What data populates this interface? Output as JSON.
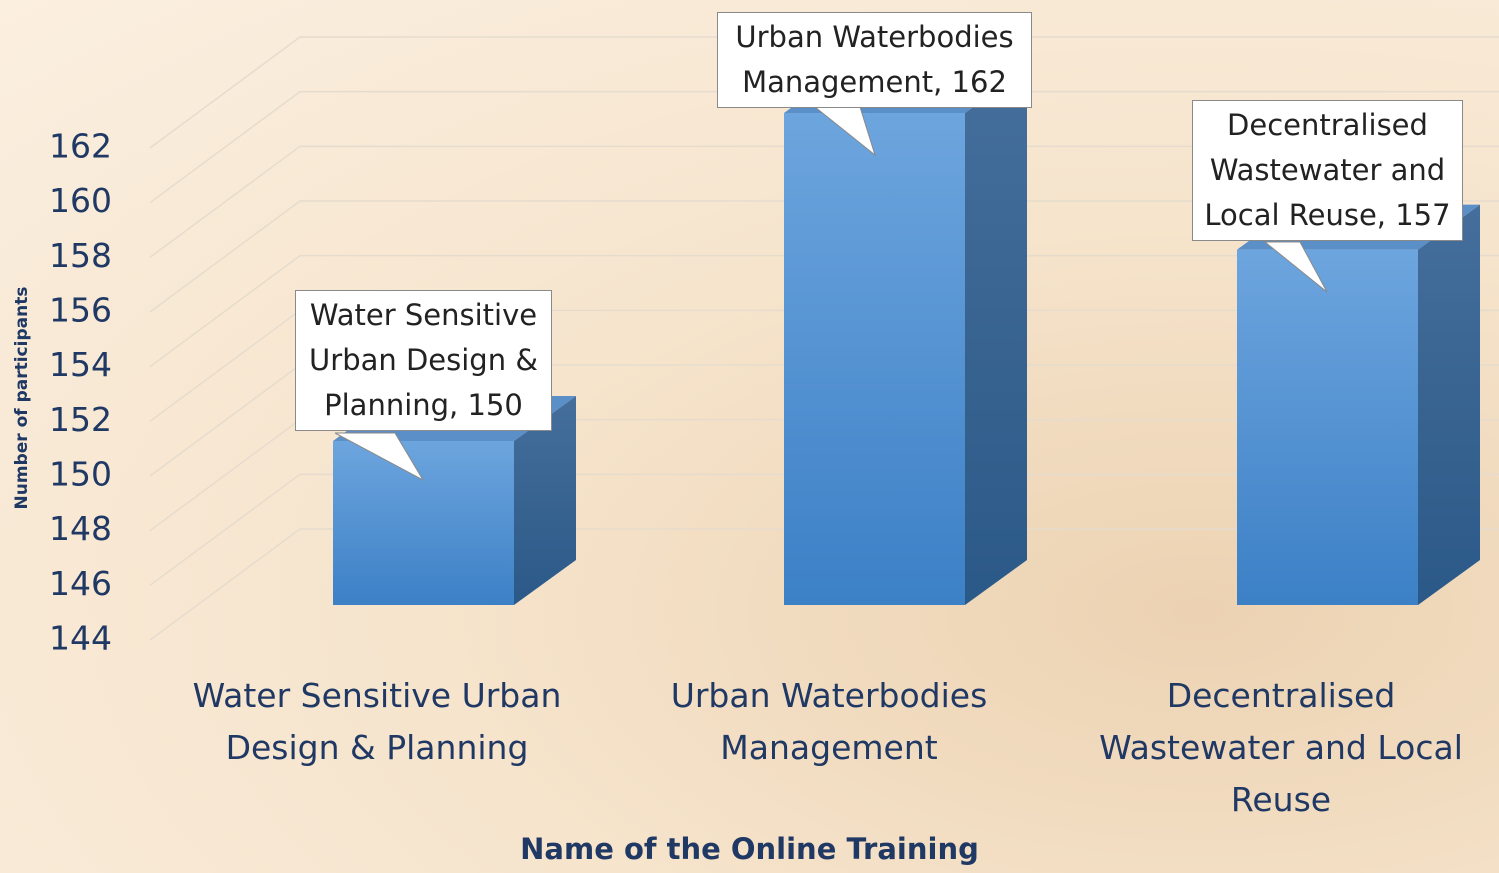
{
  "chart_data": {
    "type": "bar3d",
    "y_axis_label": "Number of participants",
    "x_axis_label": "Name of the Online Training",
    "categories": [
      "Water Sensitive Urban Design & Planning",
      "Urban Waterbodies Management",
      "Decentralised Wastewater and Local Reuse"
    ],
    "values": [
      150,
      162,
      157
    ],
    "value_labels": [
      "Water Sensitive Urban Design & Planning, 150",
      "Urban Waterbodies Management, 162",
      "Decentralised Wastewater and Local Reuse, 157"
    ],
    "color": "#5b9bd5",
    "ylim": [
      144,
      162
    ],
    "yticks": [
      144,
      146,
      148,
      150,
      152,
      154,
      156,
      158,
      160,
      162
    ],
    "grid": true
  }
}
